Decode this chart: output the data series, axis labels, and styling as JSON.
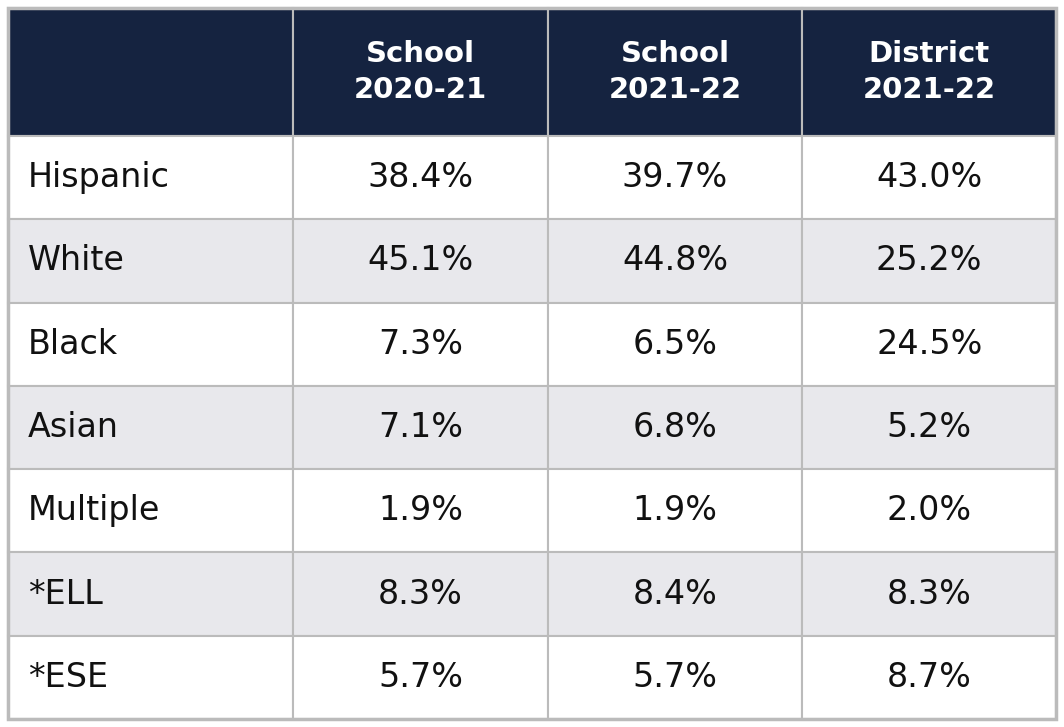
{
  "header_bg_color": "#152340",
  "header_text_color": "#ffffff",
  "row_colors": [
    "#ffffff",
    "#e8e8ec"
  ],
  "cell_text_color": "#111111",
  "col_headers_line1": [
    "",
    "School",
    "School",
    "District"
  ],
  "col_headers_line2": [
    "",
    "2020-21",
    "2021-22",
    "2021-22"
  ],
  "rows": [
    [
      "Hispanic",
      "38.4%",
      "39.7%",
      "43.0%"
    ],
    [
      "White",
      "45.1%",
      "44.8%",
      "25.2%"
    ],
    [
      "Black",
      "7.3%",
      "6.5%",
      "24.5%"
    ],
    [
      "Asian",
      "7.1%",
      "6.8%",
      "5.2%"
    ],
    [
      "Multiple",
      "1.9%",
      "1.9%",
      "2.0%"
    ],
    [
      "*ELL",
      "8.3%",
      "8.4%",
      "8.3%"
    ],
    [
      "*ESE",
      "5.7%",
      "5.7%",
      "8.7%"
    ]
  ],
  "figure_bg": "#ffffff",
  "grid_color": "#bbbbbb",
  "header_fontsize": 21,
  "cell_fontsize": 24,
  "label_fontsize": 24,
  "header_line1_bold": true,
  "header_line2_bold": true,
  "data_bold": false
}
